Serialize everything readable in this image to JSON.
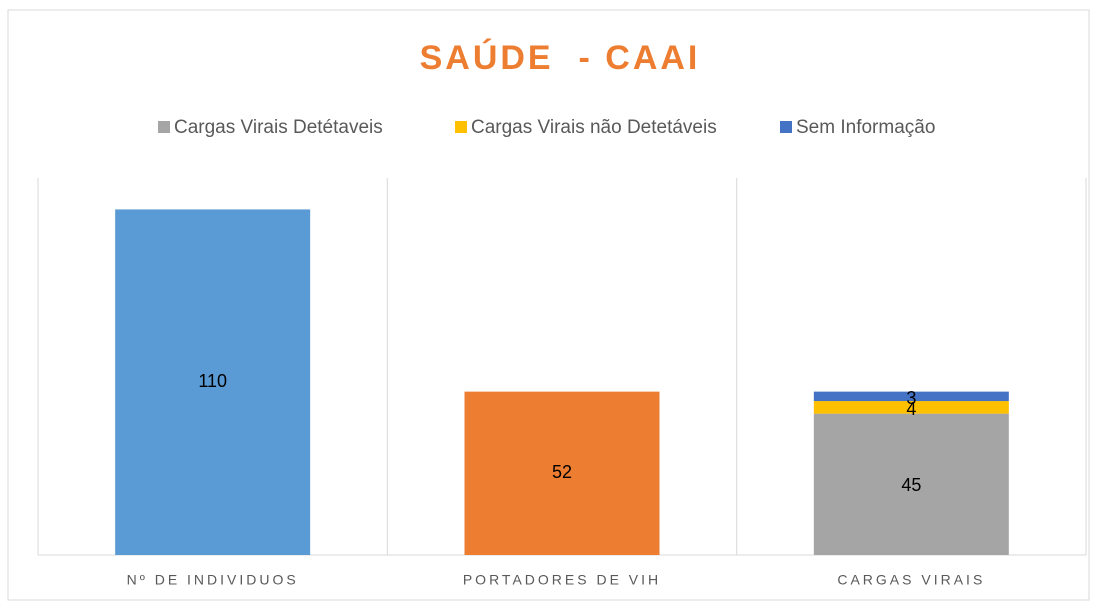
{
  "chart_data": {
    "type": "bar",
    "title": "SAÚDE  - CAAI",
    "categories": [
      "Nº DE INDIVIDUOS",
      "PORTADORES DE VIH",
      "CARGAS VIRAIS"
    ],
    "values": [
      110,
      52,
      null
    ],
    "colors": [
      "#5b9bd5",
      "#ed7d31",
      null
    ],
    "series": [
      {
        "name": "Cargas Virais Detétaveis",
        "color": "#a5a5a5",
        "values": [
          null,
          null,
          45
        ]
      },
      {
        "name": "Cargas Virais não Detetáveis",
        "color": "#ffc000",
        "values": [
          null,
          null,
          4
        ]
      },
      {
        "name": "Sem Informação",
        "color": "#4472c4",
        "values": [
          null,
          null,
          3
        ]
      }
    ],
    "stacked": true,
    "ylim": [
      0,
      120
    ],
    "legend": "top"
  }
}
